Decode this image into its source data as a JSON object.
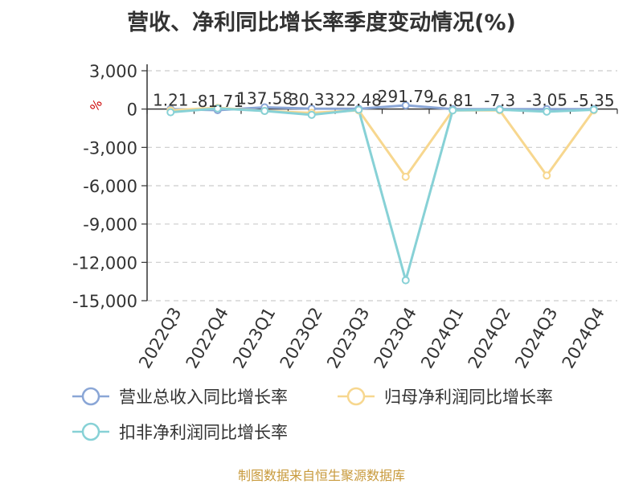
{
  "title": "营收、净利同比增长率季度变动情况(%)",
  "source": "制图数据来自恒生聚源数据库",
  "colors": {
    "revenue": "#8aa6d6",
    "net_profit": "#f7d78f",
    "deducted_profit": "#87d1d6",
    "axis": "#333333",
    "grid": "#cccccc",
    "unit": "#cc0000",
    "source": "#c89a3c"
  },
  "chart_data": {
    "type": "line",
    "title": "营收、净利同比增长率季度变动情况(%)",
    "ylabel": "%",
    "xlabel": "",
    "ylim": [
      -15000,
      3000
    ],
    "yticks": [
      3000,
      0,
      -3000,
      -6000,
      -9000,
      -12000,
      -15000
    ],
    "ytick_labels": [
      "3,000",
      "0",
      "-3,000",
      "-6,000",
      "-9,000",
      "-12,000",
      "-15,000"
    ],
    "grid": true,
    "legend_position": "bottom",
    "categories": [
      "2022Q3",
      "2022Q4",
      "2023Q1",
      "2023Q2",
      "2023Q3",
      "2023Q4",
      "2024Q1",
      "2024Q2",
      "2024Q3",
      "2024Q4"
    ],
    "series": [
      {
        "name": "营业总收入同比增长率",
        "values": [
          1.21,
          -81.71,
          137.58,
          30.33,
          22.48,
          291.79,
          -6.81,
          -7.3,
          -3.05,
          -5.35
        ],
        "labels": [
          "1.21",
          "-81.71",
          "137.58",
          "30.33",
          "22.48",
          "291.79",
          "-6.81",
          "-7.3",
          "-3.05",
          "-5.35"
        ]
      },
      {
        "name": "归母净利润同比增长率",
        "values": [
          -100,
          100,
          -150,
          -300,
          -100,
          -5300,
          -100,
          -100,
          -5200,
          -100
        ]
      },
      {
        "name": "扣非净利润同比增长率",
        "values": [
          -250,
          50,
          -150,
          -450,
          -50,
          -13400,
          -100,
          -50,
          -200,
          -50
        ]
      }
    ]
  }
}
